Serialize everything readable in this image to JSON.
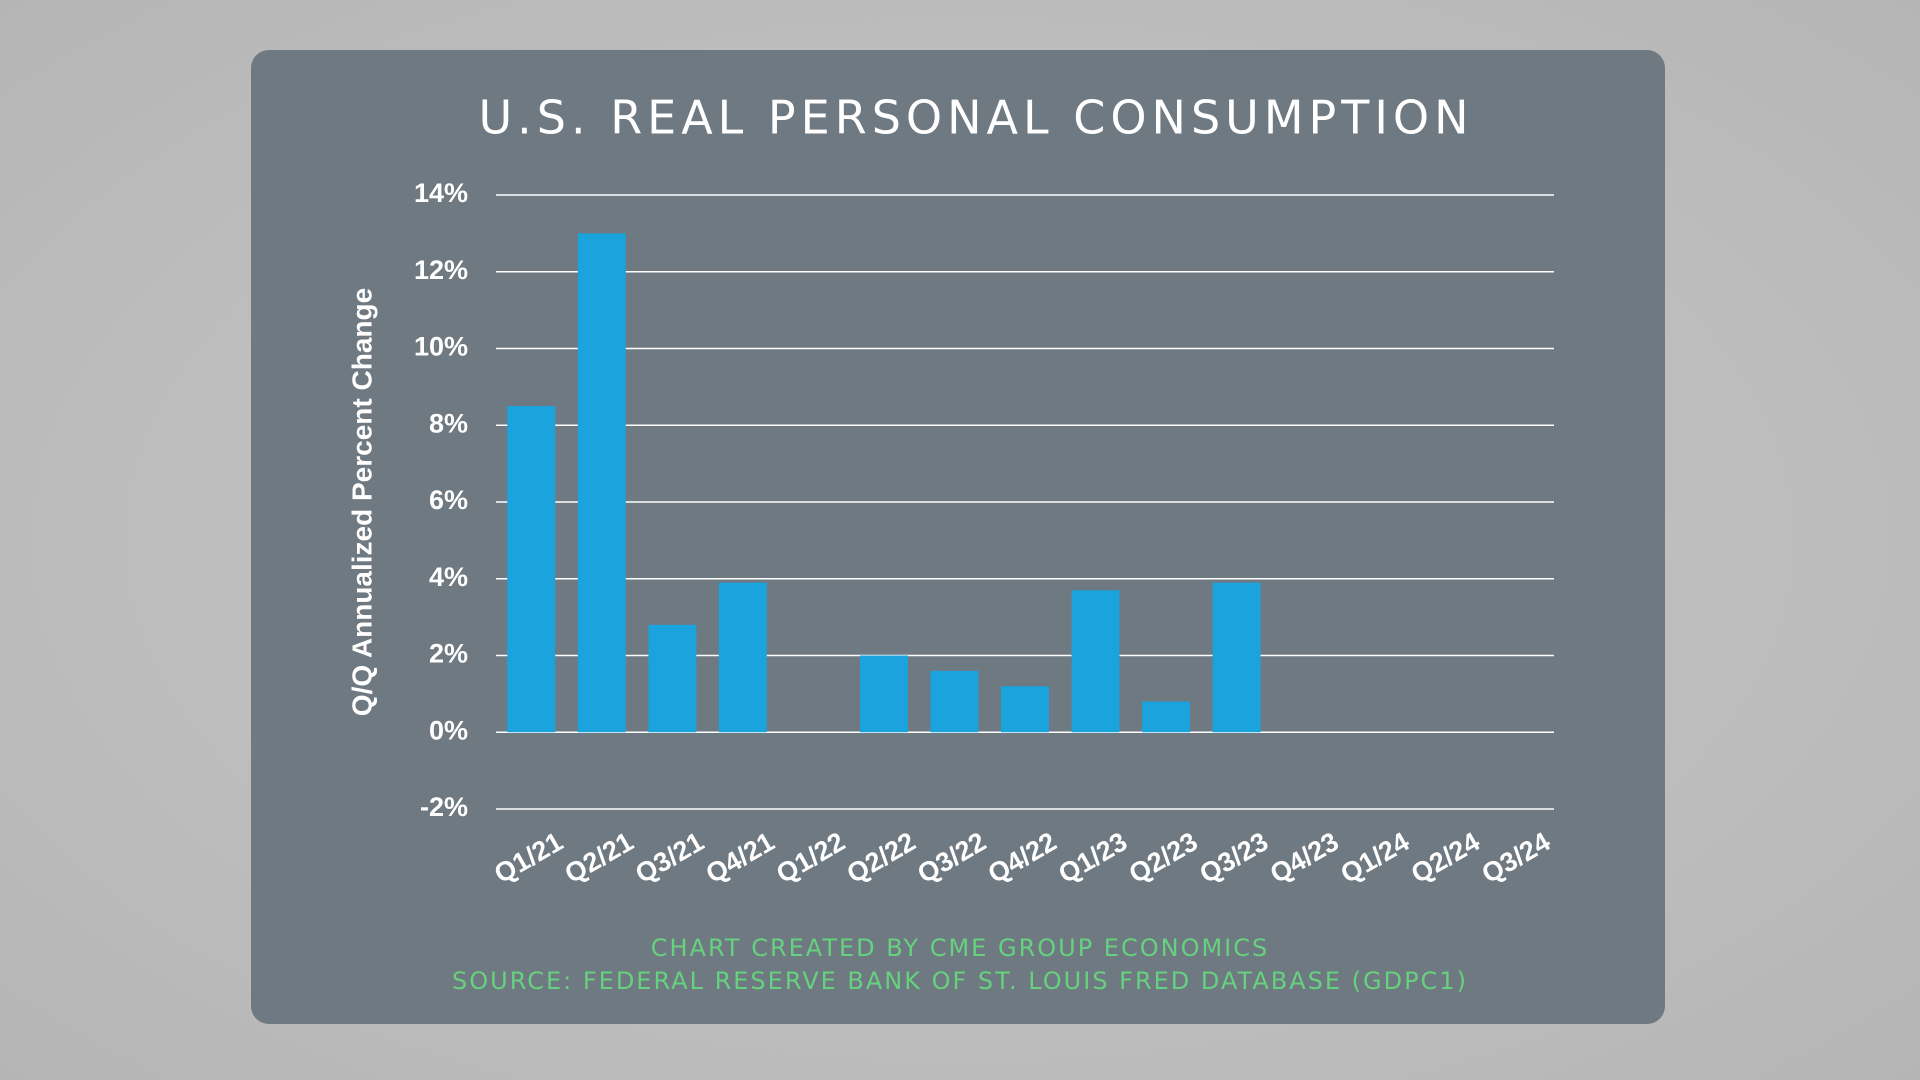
{
  "chart_data": {
    "type": "bar",
    "title": "U.S. REAL PERSONAL CONSUMPTION",
    "y_label": "Q/Q Annualized Percent Change",
    "footnotes": [
      "CHART CREATED BY CME GROUP ECONOMICS",
      "SOURCE: FEDERAL RESERVE BANK OF ST. LOUIS FRED DATABASE (GDPC1)"
    ],
    "categories": [
      "Q1/21",
      "Q2/21",
      "Q3/21",
      "Q4/21",
      "Q1/22",
      "Q2/22",
      "Q3/22",
      "Q4/22",
      "Q1/23",
      "Q2/23",
      "Q3/23",
      "Q4/23",
      "Q1/24",
      "Q2/24",
      "Q3/24"
    ],
    "values": [
      8.5,
      13.0,
      2.8,
      3.9,
      0.0,
      2.0,
      1.6,
      1.2,
      3.7,
      0.8,
      3.9,
      null,
      null,
      null,
      null
    ],
    "color": "#1aa3dc",
    "ylim": [
      -2,
      14
    ],
    "yticks": [
      {
        "value": -2,
        "label": "-2%"
      },
      {
        "value": 0,
        "label": "0%"
      },
      {
        "value": 2,
        "label": "2%"
      },
      {
        "value": 4,
        "label": "4%"
      },
      {
        "value": 6,
        "label": "6%"
      },
      {
        "value": 8,
        "label": "8%"
      },
      {
        "value": 10,
        "label": "10%"
      },
      {
        "value": 12,
        "label": "12%"
      },
      {
        "value": 14,
        "label": "14%"
      }
    ],
    "grid": true
  }
}
